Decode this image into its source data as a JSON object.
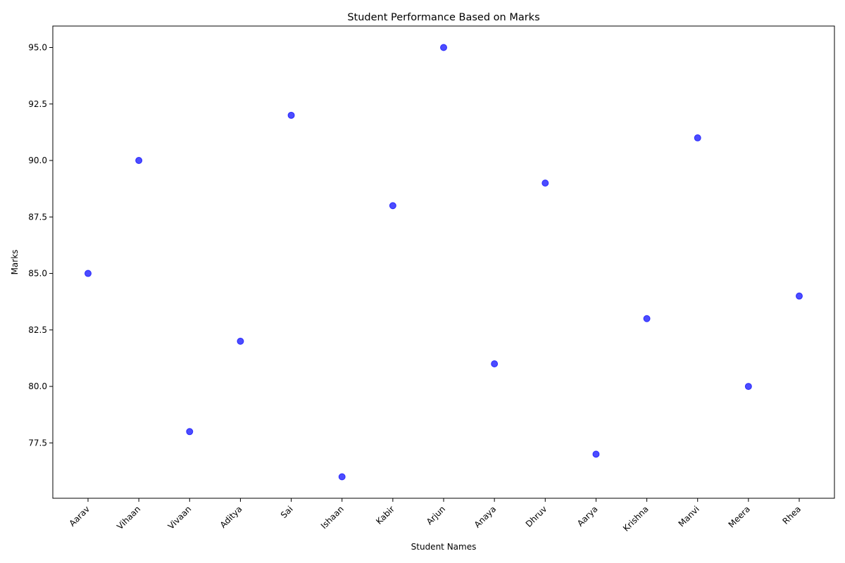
{
  "chart_data": {
    "type": "scatter",
    "title": "Student Performance Based on Marks",
    "xlabel": "Student Names",
    "ylabel": "Marks",
    "categories": [
      "Aarav",
      "Vihaan",
      "Vivaan",
      "Aditya",
      "Sai",
      "Ishaan",
      "Kabir",
      "Arjun",
      "Anaya",
      "Dhruv",
      "Aarya",
      "Krishna",
      "Manvi",
      "Meera",
      "Rhea"
    ],
    "values": [
      85,
      90,
      78,
      82,
      92,
      76,
      88,
      95,
      81,
      89,
      77,
      83,
      91,
      80,
      84
    ],
    "ylim": [
      75.05,
      95.95
    ],
    "yticks": [
      77.5,
      80.0,
      82.5,
      85.0,
      87.5,
      90.0,
      92.5,
      95.0
    ],
    "ytick_labels": [
      "77.5",
      "80.0",
      "82.5",
      "85.0",
      "87.5",
      "90.0",
      "92.5",
      "95.0"
    ],
    "marker_color": "#0000ff",
    "marker_alpha": 0.7,
    "grid": false,
    "legend": false
  }
}
